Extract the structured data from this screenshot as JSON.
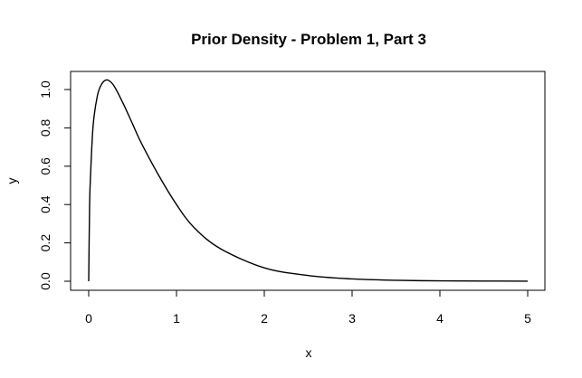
{
  "chart_data": {
    "type": "line",
    "title": "Prior Density - Problem 1, Part 3",
    "xlabel": "x",
    "ylabel": "y",
    "xlim": [
      0,
      5
    ],
    "ylim": [
      0,
      1.05
    ],
    "grid": false,
    "legend": "none",
    "x_ticks": [
      0,
      1,
      2,
      3,
      4,
      5
    ],
    "x_tick_labels": [
      "0",
      "1",
      "2",
      "3",
      "4",
      "5"
    ],
    "y_ticks": [
      0,
      0.2,
      0.4,
      0.6,
      0.8,
      1.0
    ],
    "y_tick_labels": [
      "0.0",
      "0.2",
      "0.4",
      "0.6",
      "0.8",
      "1.0"
    ],
    "colors": {
      "line": "#000000",
      "axes": "#000000",
      "background": "#ffffff"
    },
    "series": [
      {
        "x": [
          0,
          0.01,
          0.02,
          0.05,
          0.1,
          0.15,
          0.2,
          0.25,
          0.3,
          0.4,
          0.5,
          0.6,
          0.8,
          1.0,
          1.2,
          1.5,
          2.0,
          2.5,
          3.0,
          3.5,
          4.0,
          4.5,
          5.0
        ],
        "values": [
          0,
          0.39,
          0.54,
          0.81,
          0.97,
          1.03,
          1.05,
          1.04,
          1.01,
          0.92,
          0.82,
          0.72,
          0.55,
          0.4,
          0.28,
          0.17,
          0.07,
          0.03,
          0.012,
          0.005,
          0.002,
          0.001,
          0.0005
        ]
      }
    ]
  }
}
